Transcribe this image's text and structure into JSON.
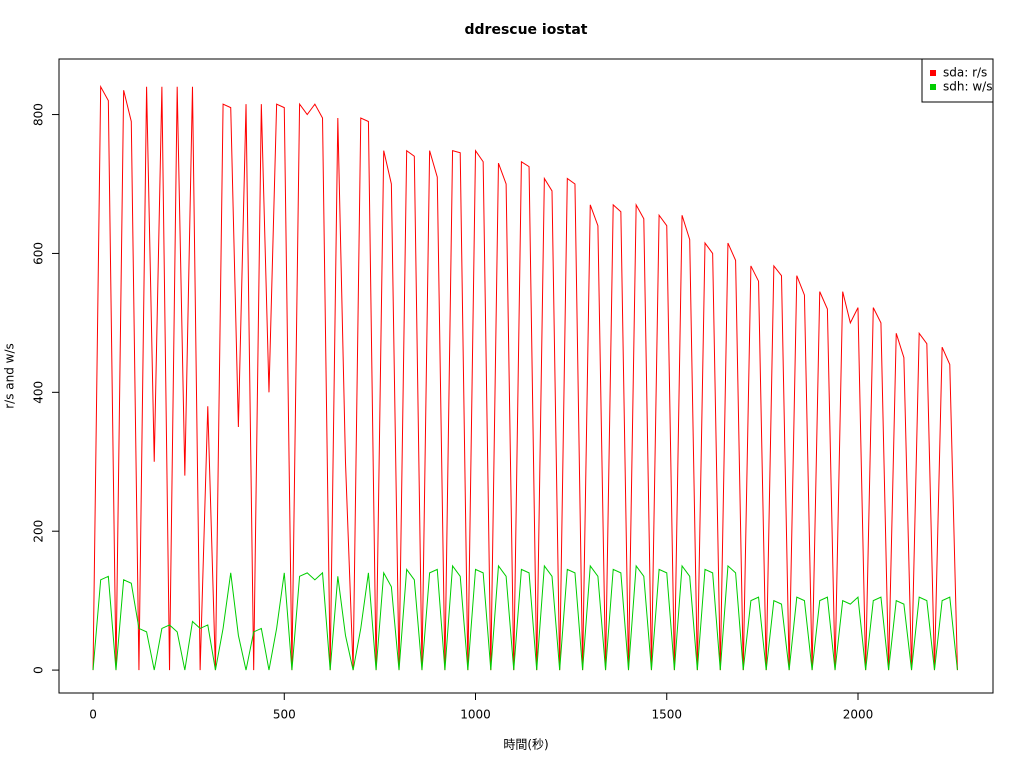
{
  "chart_data": {
    "type": "line",
    "title": "ddrescue iostat",
    "x_label": "時間(秒)",
    "y_label": "r/s and w/s",
    "x": [
      0,
      20,
      40,
      60,
      80,
      100,
      120,
      140,
      160,
      180,
      200,
      220,
      240,
      260,
      280,
      300,
      320,
      340,
      360,
      380,
      400,
      420,
      440,
      460,
      480,
      500,
      520,
      540,
      560,
      580,
      600,
      620,
      640,
      660,
      680,
      700,
      720,
      740,
      760,
      780,
      800,
      820,
      840,
      860,
      880,
      900,
      920,
      940,
      960,
      980,
      1000,
      1020,
      1040,
      1060,
      1080,
      1100,
      1120,
      1140,
      1160,
      1180,
      1200,
      1220,
      1240,
      1260,
      1280,
      1300,
      1320,
      1340,
      1360,
      1380,
      1400,
      1420,
      1440,
      1460,
      1480,
      1500,
      1520,
      1540,
      1560,
      1580,
      1600,
      1620,
      1640,
      1660,
      1680,
      1700,
      1720,
      1740,
      1760,
      1780,
      1800,
      1820,
      1840,
      1860,
      1880,
      1900,
      1920,
      1940,
      1960,
      1980,
      2000,
      2020,
      2040,
      2060,
      2080,
      2100,
      2120,
      2140,
      2160,
      2180,
      2200,
      2220,
      2240,
      2260
    ],
    "series": [
      {
        "name": "sda: r/s",
        "color": "#ff0000",
        "values": [
          0,
          840,
          820,
          0,
          835,
          790,
          0,
          840,
          300,
          840,
          0,
          840,
          280,
          840,
          0,
          380,
          0,
          815,
          810,
          350,
          815,
          0,
          815,
          400,
          815,
          810,
          0,
          815,
          800,
          815,
          795,
          0,
          795,
          300,
          0,
          795,
          790,
          0,
          748,
          700,
          0,
          748,
          740,
          0,
          748,
          710,
          0,
          748,
          745,
          0,
          748,
          732,
          0,
          730,
          700,
          0,
          732,
          725,
          0,
          708,
          690,
          0,
          708,
          700,
          0,
          670,
          640,
          0,
          670,
          660,
          0,
          670,
          650,
          0,
          655,
          640,
          0,
          655,
          620,
          0,
          615,
          600,
          0,
          615,
          590,
          0,
          582,
          560,
          0,
          582,
          568,
          0,
          568,
          540,
          0,
          545,
          520,
          0,
          545,
          500,
          522,
          0,
          522,
          500,
          0,
          485,
          450,
          0,
          485,
          470,
          0,
          465,
          440,
          0
        ]
      },
      {
        "name": "sdh: w/s",
        "color": "#00cd00",
        "values": [
          0,
          130,
          135,
          0,
          130,
          125,
          60,
          55,
          0,
          60,
          65,
          55,
          0,
          70,
          60,
          65,
          0,
          60,
          140,
          50,
          0,
          55,
          60,
          0,
          60,
          140,
          0,
          135,
          140,
          130,
          140,
          0,
          135,
          50,
          0,
          60,
          140,
          0,
          140,
          120,
          0,
          145,
          130,
          0,
          140,
          145,
          0,
          150,
          135,
          0,
          145,
          140,
          0,
          150,
          135,
          0,
          145,
          140,
          0,
          150,
          135,
          0,
          145,
          140,
          0,
          150,
          135,
          0,
          145,
          140,
          0,
          150,
          135,
          0,
          145,
          140,
          0,
          150,
          135,
          0,
          145,
          140,
          0,
          150,
          140,
          0,
          100,
          105,
          0,
          100,
          95,
          0,
          105,
          100,
          0,
          100,
          105,
          0,
          100,
          95,
          105,
          0,
          100,
          105,
          0,
          100,
          95,
          0,
          105,
          100,
          0,
          100,
          105,
          0
        ]
      }
    ],
    "xlim": [
      -89,
      2353
    ],
    "ylim": [
      -33,
      880
    ],
    "xticks": [
      0,
      500,
      1000,
      1500,
      2000
    ],
    "yticks": [
      0,
      200,
      400,
      600,
      800
    ],
    "legend": "top-right"
  }
}
